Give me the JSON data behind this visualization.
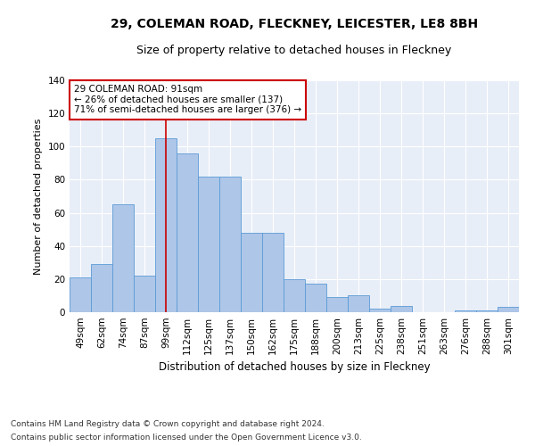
{
  "title1": "29, COLEMAN ROAD, FLECKNEY, LEICESTER, LE8 8BH",
  "title2": "Size of property relative to detached houses in Fleckney",
  "xlabel": "Distribution of detached houses by size in Fleckney",
  "ylabel": "Number of detached properties",
  "categories": [
    "49sqm",
    "62sqm",
    "74sqm",
    "87sqm",
    "99sqm",
    "112sqm",
    "125sqm",
    "137sqm",
    "150sqm",
    "162sqm",
    "175sqm",
    "188sqm",
    "200sqm",
    "213sqm",
    "225sqm",
    "238sqm",
    "251sqm",
    "263sqm",
    "276sqm",
    "288sqm",
    "301sqm"
  ],
  "values": [
    21,
    29,
    65,
    22,
    105,
    96,
    82,
    82,
    48,
    48,
    20,
    17,
    9,
    10,
    2,
    4,
    0,
    0,
    1,
    1,
    3
  ],
  "bar_color": "#aec6e8",
  "bar_edge_color": "#5b9bd5",
  "red_line_index": 4,
  "annotation_text": "29 COLEMAN ROAD: 91sqm\n← 26% of detached houses are smaller (137)\n71% of semi-detached houses are larger (376) →",
  "annotation_box_color": "#ffffff",
  "annotation_box_edge": "#cc0000",
  "ylim": [
    0,
    140
  ],
  "yticks": [
    0,
    20,
    40,
    60,
    80,
    100,
    120,
    140
  ],
  "background_color": "#e8eef8",
  "footer1": "Contains HM Land Registry data © Crown copyright and database right 2024.",
  "footer2": "Contains public sector information licensed under the Open Government Licence v3.0.",
  "title1_fontsize": 10,
  "title2_fontsize": 9,
  "xlabel_fontsize": 8.5,
  "ylabel_fontsize": 8,
  "tick_fontsize": 7.5,
  "annotation_fontsize": 7.5,
  "footer_fontsize": 6.5
}
